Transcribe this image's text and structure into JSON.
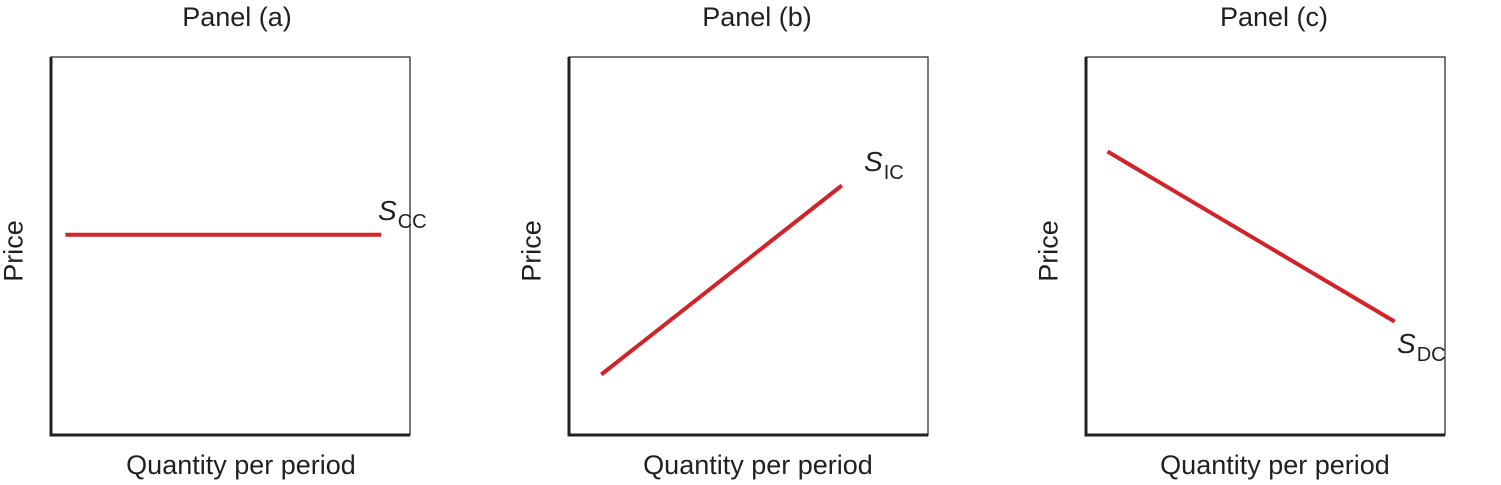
{
  "chart_data": [
    {
      "type": "line",
      "title": "Panel (a)",
      "xlabel": "Quantity per period",
      "ylabel": "Price",
      "xlim": [
        0,
        100
      ],
      "ylim": [
        0,
        100
      ],
      "grid": false,
      "series": [
        {
          "label_main": "S",
          "label_sub": "CC",
          "color": "#d2232a",
          "x": [
            4,
            92
          ],
          "y": [
            53,
            53
          ]
        }
      ]
    },
    {
      "type": "line",
      "title": "Panel (b)",
      "xlabel": "Quantity per period",
      "ylabel": "Price",
      "xlim": [
        0,
        100
      ],
      "ylim": [
        0,
        100
      ],
      "grid": false,
      "series": [
        {
          "label_main": "S",
          "label_sub": "IC",
          "color": "#d2232a",
          "x": [
            9,
            76
          ],
          "y": [
            16,
            66
          ]
        }
      ]
    },
    {
      "type": "line",
      "title": "Panel (c)",
      "xlabel": "Quantity per period",
      "ylabel": "Price",
      "xlim": [
        0,
        100
      ],
      "ylim": [
        0,
        100
      ],
      "grid": false,
      "series": [
        {
          "label_main": "S",
          "label_sub": "DC",
          "color": "#d2232a",
          "x": [
            6,
            86
          ],
          "y": [
            75,
            30
          ]
        }
      ]
    }
  ]
}
